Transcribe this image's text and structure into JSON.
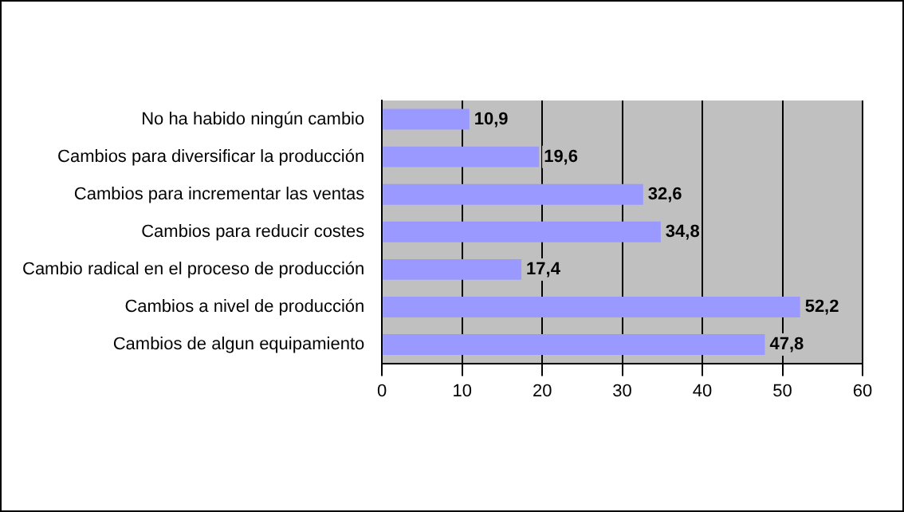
{
  "chart_data": {
    "type": "bar",
    "orientation": "horizontal",
    "categories": [
      "No ha habido ningún cambio",
      "Cambios para diversificar la producción",
      "Cambios para incrementar las ventas",
      "Cambios para reducir costes",
      "Cambio radical en el proceso de producción",
      "Cambios a nivel de producción",
      "Cambios de algun equipamiento"
    ],
    "values": [
      10.9,
      19.6,
      32.6,
      34.8,
      17.4,
      52.2,
      47.8
    ],
    "value_labels": [
      "10,9",
      "19,6",
      "32,6",
      "34,8",
      "17,4",
      "52,2",
      "47,8"
    ],
    "color": "#9999ff",
    "xlim": [
      0,
      60
    ],
    "xticks": [
      0,
      10,
      20,
      30,
      40,
      50,
      60
    ],
    "grid": "x",
    "legend": false
  }
}
